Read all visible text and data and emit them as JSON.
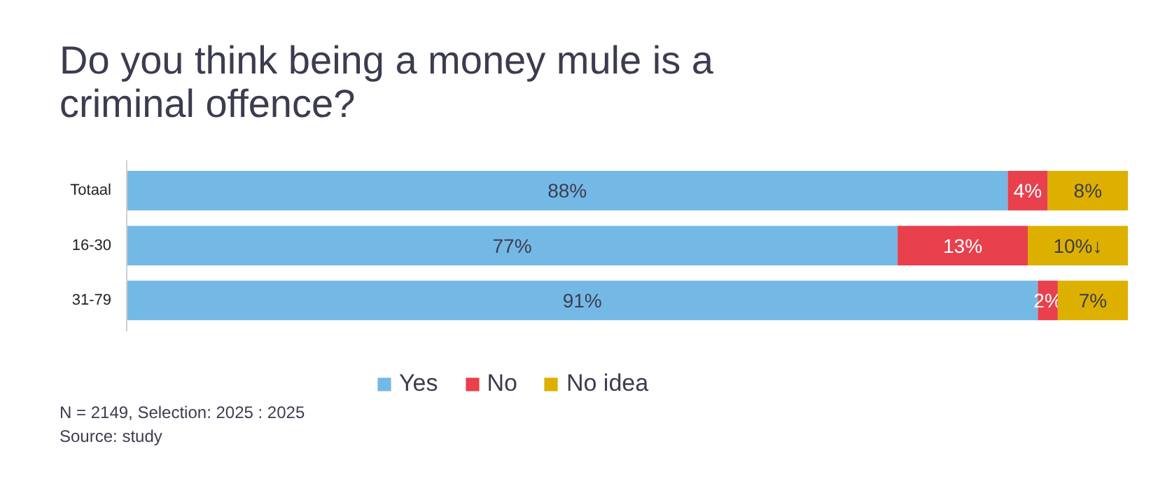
{
  "chart_data": {
    "type": "bar",
    "orientation": "horizontal",
    "stacked": true,
    "title": "Do you think being a money mule is a\ncriminal offence?",
    "categories": [
      "Totaal",
      "16-30",
      "31-79"
    ],
    "series": [
      {
        "name": "Yes",
        "color": "#74b9e6",
        "values": [
          88,
          77,
          91
        ],
        "value_labels": [
          "88%",
          "77%",
          "91%"
        ]
      },
      {
        "name": "No",
        "color": "#e8404c",
        "values": [
          4,
          13,
          2
        ],
        "value_labels": [
          "4%",
          "13%",
          "2%"
        ]
      },
      {
        "name": "No idea",
        "color": "#ddb000",
        "values": [
          8,
          10,
          7
        ],
        "value_labels": [
          "8%",
          "10%↓",
          "7%"
        ]
      }
    ],
    "legend": "bottom",
    "grid": false,
    "tick_labels": "y",
    "annotations": [
      "N = 2149, Selection: 2025 : 2025",
      "Source: study"
    ]
  }
}
